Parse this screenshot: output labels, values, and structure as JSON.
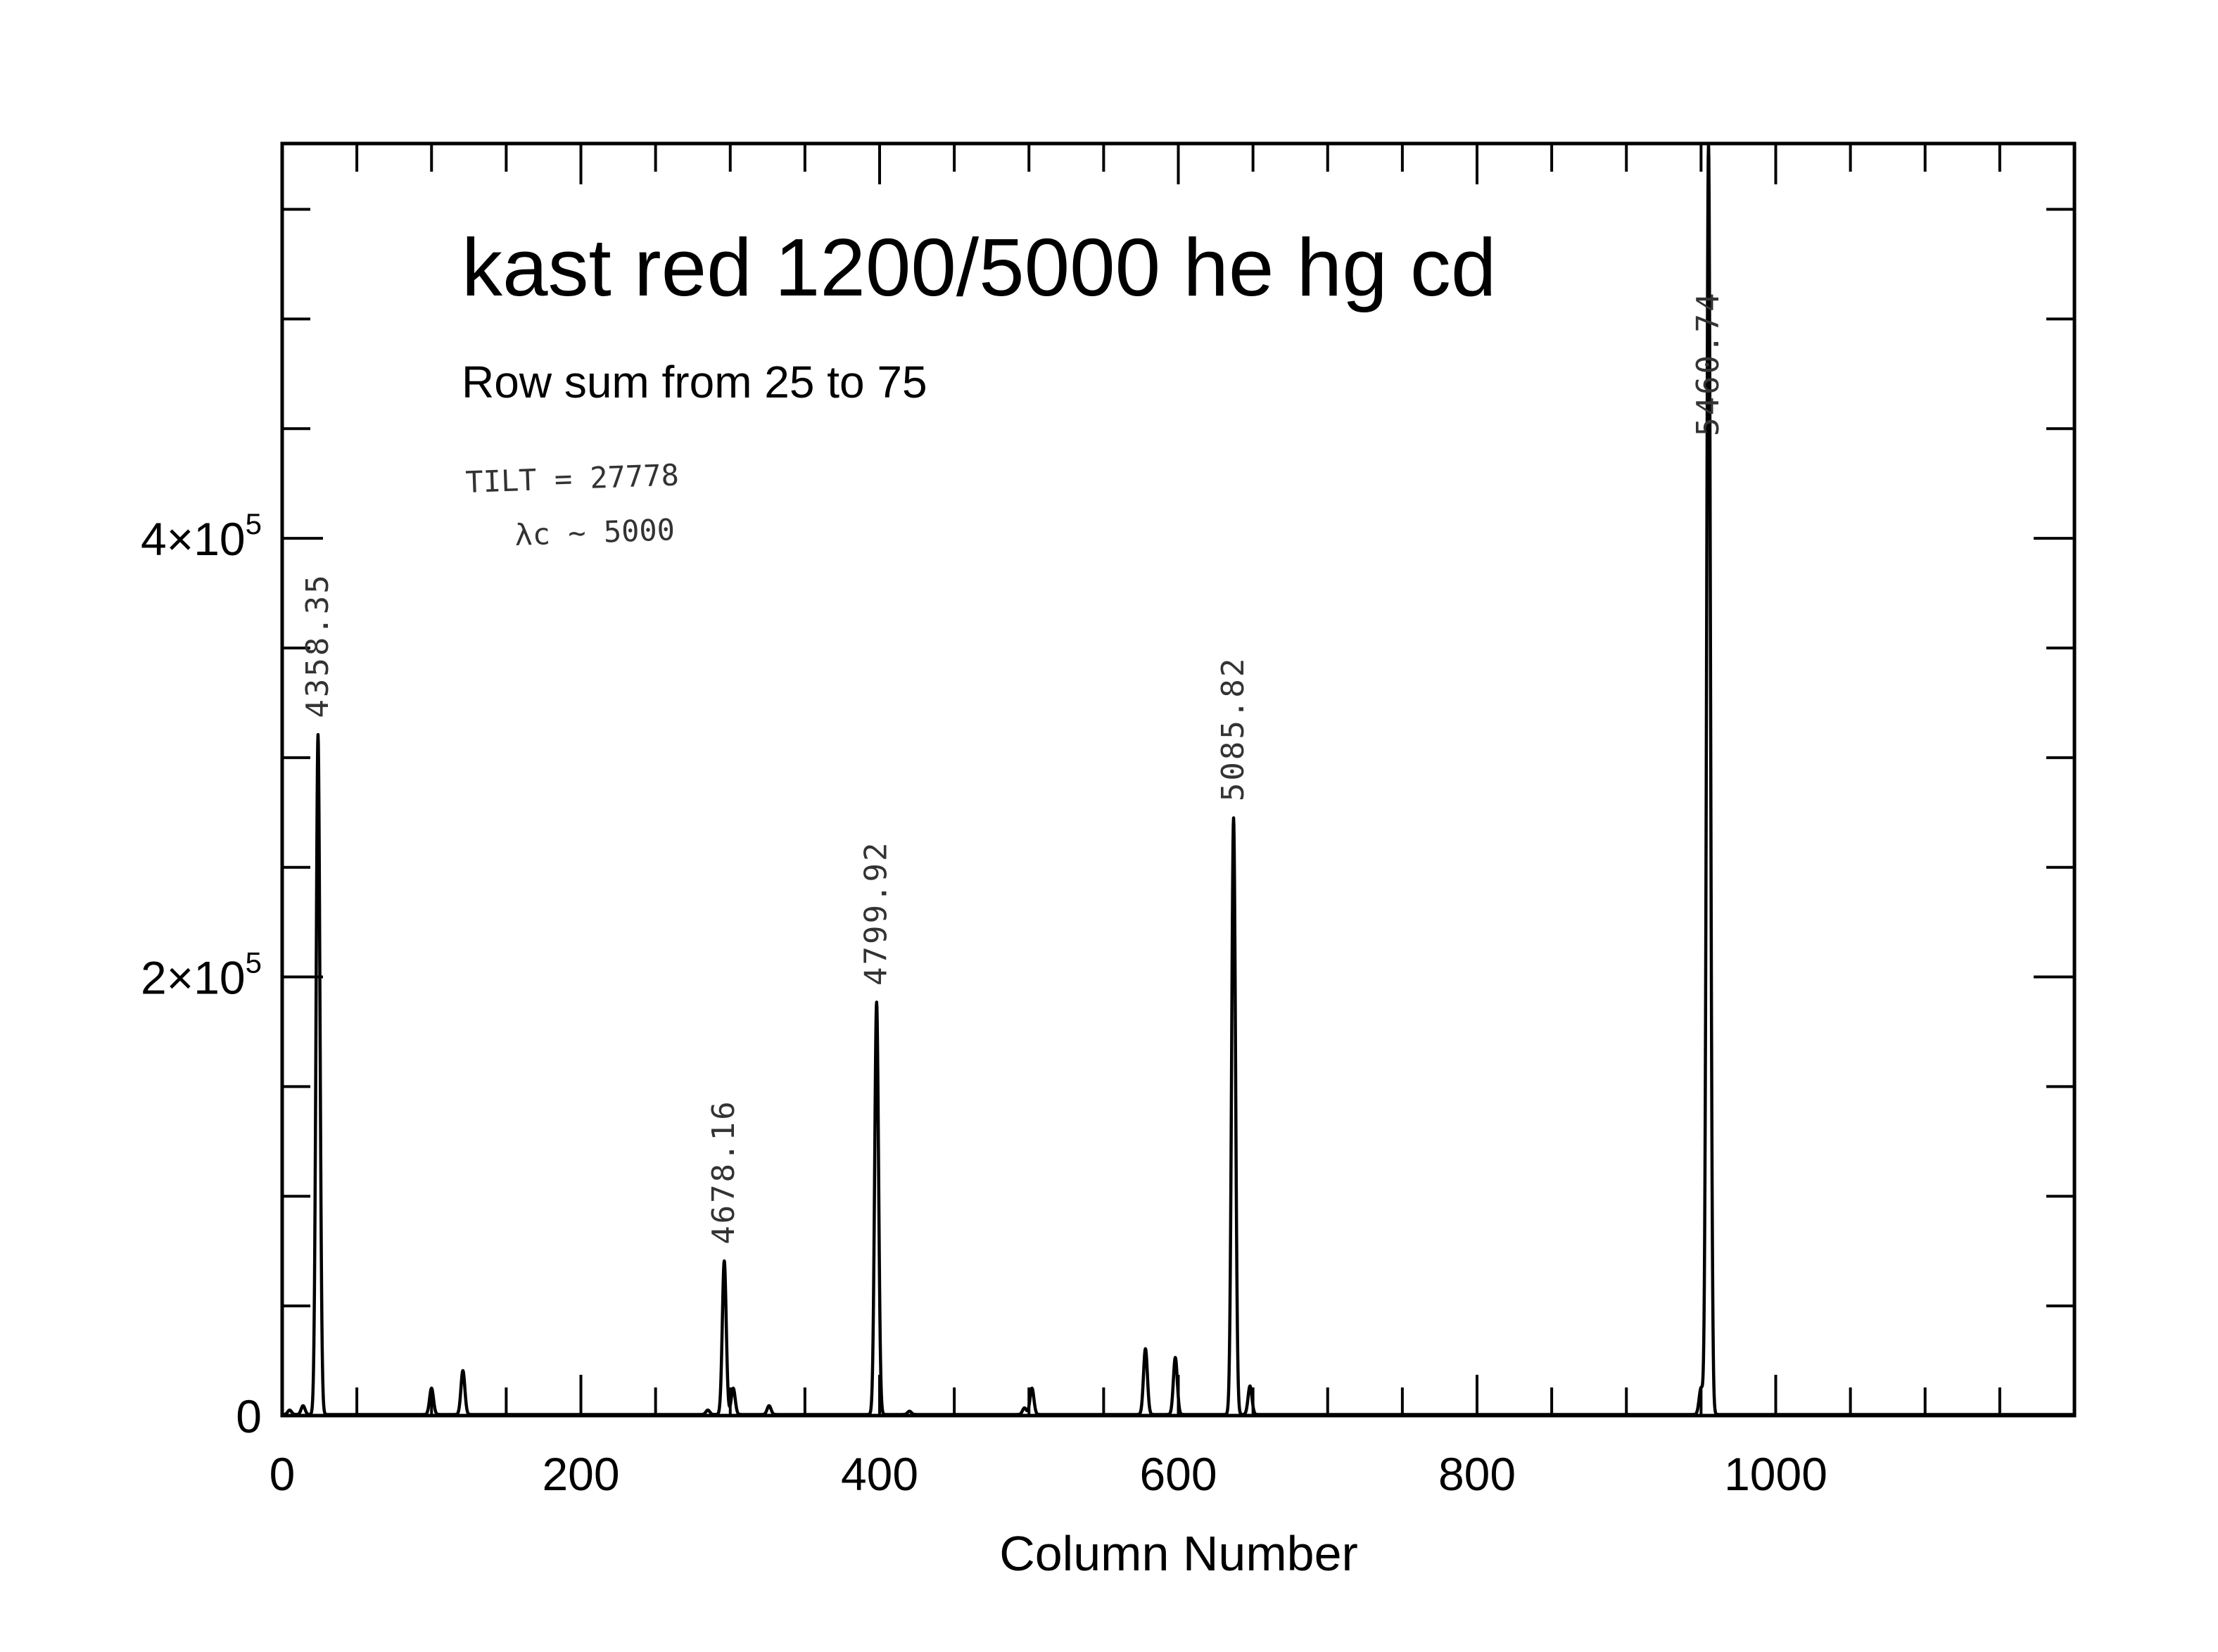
{
  "chart_data": {
    "type": "line",
    "title": "kast red 1200/5000 he hg cd",
    "subtitle": "Row sum from 25 to 75",
    "xlabel": "Column Number",
    "ylabel": "",
    "xlim": [
      0,
      1200
    ],
    "ylim": [
      0,
      580000
    ],
    "x_ticks": [
      0,
      200,
      400,
      600,
      800,
      1000
    ],
    "x_tick_labels": [
      "0",
      "200",
      "400",
      "600",
      "800",
      "1000"
    ],
    "y_ticks": [
      0,
      200000,
      400000
    ],
    "y_tick_labels": [
      {
        "mantissa": "0",
        "exp": ""
      },
      {
        "mantissa": "2×10",
        "exp": "5"
      },
      {
        "mantissa": "4×10",
        "exp": "5"
      }
    ],
    "x_minor_step": 50,
    "y_minor_step": 50000,
    "grid": false,
    "handwritten_notes": [
      "TILT = 27778",
      "λc ~ 5000"
    ],
    "series": [
      {
        "peaks": [
          {
            "x": 5,
            "y": 2000
          },
          {
            "x": 14,
            "y": 4000
          },
          {
            "x": 24,
            "y": 310000,
            "label": "4358.35"
          },
          {
            "x": 100,
            "y": 12000
          },
          {
            "x": 121,
            "y": 20000
          },
          {
            "x": 285,
            "y": 2000
          },
          {
            "x": 296,
            "y": 70000,
            "label": "4678.16"
          },
          {
            "x": 302,
            "y": 12000
          },
          {
            "x": 326,
            "y": 4000
          },
          {
            "x": 398,
            "y": 188000,
            "label": "4799.92"
          },
          {
            "x": 420,
            "y": 1500
          },
          {
            "x": 497,
            "y": 3000
          },
          {
            "x": 502,
            "y": 12000
          },
          {
            "x": 578,
            "y": 30000
          },
          {
            "x": 598,
            "y": 26000
          },
          {
            "x": 637,
            "y": 272000,
            "label": "5085.82"
          },
          {
            "x": 648,
            "y": 13000
          },
          {
            "x": 950,
            "y": 12000
          },
          {
            "x": 955,
            "y": 580000,
            "label": "5460.74"
          }
        ]
      }
    ]
  }
}
